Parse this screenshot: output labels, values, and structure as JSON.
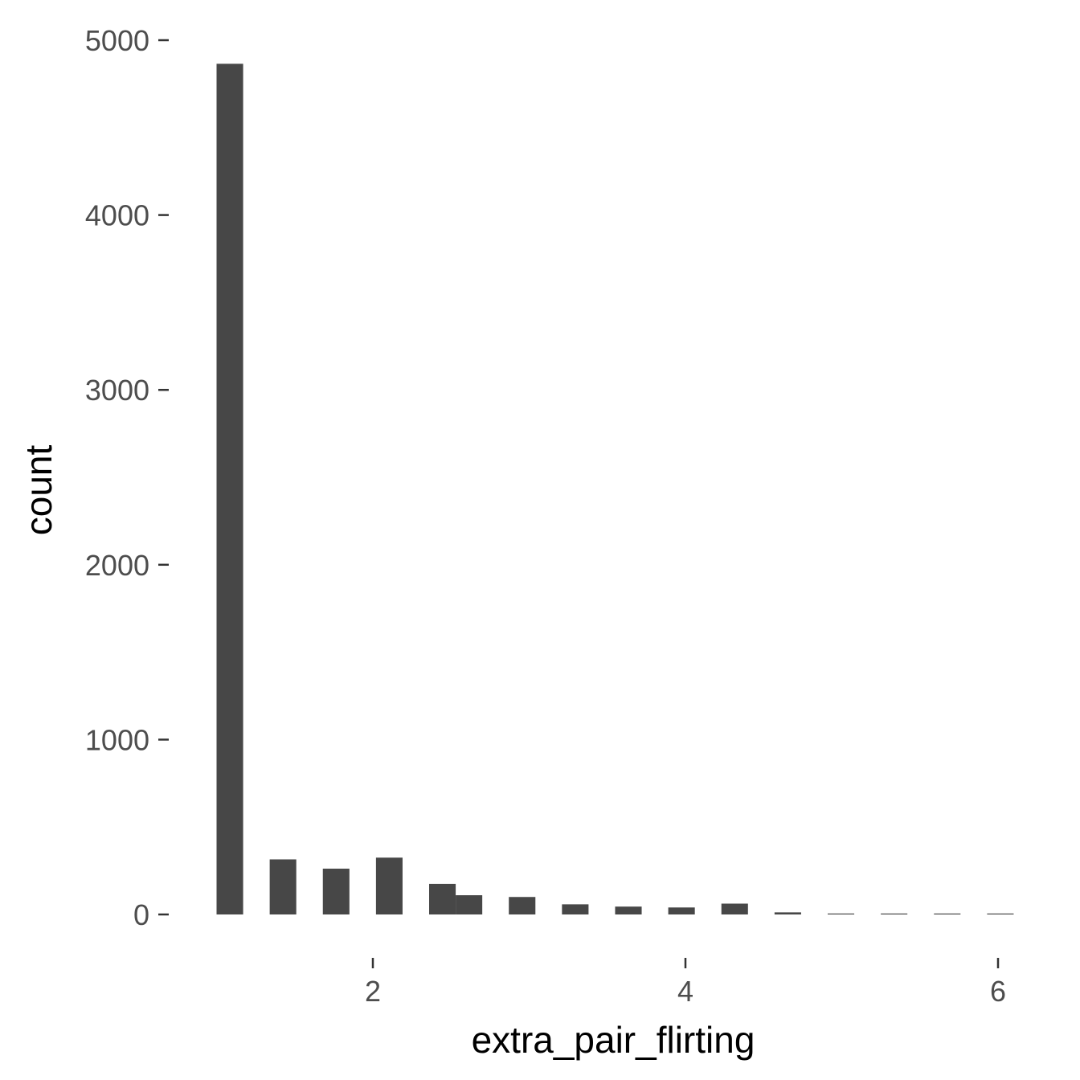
{
  "chart_data": {
    "type": "bar",
    "title": "",
    "xlabel": "extra_pair_flirting",
    "ylabel": "count",
    "xlim": [
      1.0,
      6.1
    ],
    "ylim": [
      0,
      5000
    ],
    "x_ticks": [
      2,
      4,
      6
    ],
    "y_ticks": [
      0,
      1000,
      2000,
      3000,
      4000,
      5000
    ],
    "x_tick_labels": [
      "2",
      "4",
      "6"
    ],
    "y_tick_labels": [
      "0",
      "1000",
      "2000",
      "3000",
      "4000",
      "5000"
    ],
    "grid": false,
    "legend": "none",
    "bar_color": "#474747",
    "bins": [
      {
        "x0": 1.0,
        "x1": 1.17,
        "count": 4865
      },
      {
        "x0": 1.17,
        "x1": 1.34,
        "count": 0
      },
      {
        "x0": 1.34,
        "x1": 1.51,
        "count": 315
      },
      {
        "x0": 1.51,
        "x1": 1.68,
        "count": 0
      },
      {
        "x0": 1.68,
        "x1": 1.85,
        "count": 262
      },
      {
        "x0": 1.85,
        "x1": 2.02,
        "count": 0
      },
      {
        "x0": 2.02,
        "x1": 2.19,
        "count": 325
      },
      {
        "x0": 2.19,
        "x1": 2.36,
        "count": 0
      },
      {
        "x0": 2.36,
        "x1": 2.53,
        "count": 175
      },
      {
        "x0": 2.53,
        "x1": 2.7,
        "count": 110
      },
      {
        "x0": 2.7,
        "x1": 2.87,
        "count": 0
      },
      {
        "x0": 2.87,
        "x1": 3.04,
        "count": 100
      },
      {
        "x0": 3.04,
        "x1": 3.21,
        "count": 0
      },
      {
        "x0": 3.21,
        "x1": 3.38,
        "count": 58
      },
      {
        "x0": 3.38,
        "x1": 3.55,
        "count": 0
      },
      {
        "x0": 3.55,
        "x1": 3.72,
        "count": 45
      },
      {
        "x0": 3.72,
        "x1": 3.89,
        "count": 0
      },
      {
        "x0": 3.89,
        "x1": 4.06,
        "count": 40
      },
      {
        "x0": 4.06,
        "x1": 4.23,
        "count": 0
      },
      {
        "x0": 4.23,
        "x1": 4.4,
        "count": 62
      },
      {
        "x0": 4.4,
        "x1": 4.57,
        "count": 0
      },
      {
        "x0": 4.57,
        "x1": 4.74,
        "count": 12
      },
      {
        "x0": 4.74,
        "x1": 4.91,
        "count": 0
      },
      {
        "x0": 4.91,
        "x1": 5.08,
        "count": 3
      },
      {
        "x0": 5.08,
        "x1": 5.25,
        "count": 0
      },
      {
        "x0": 5.25,
        "x1": 5.42,
        "count": 3
      },
      {
        "x0": 5.42,
        "x1": 5.59,
        "count": 0
      },
      {
        "x0": 5.59,
        "x1": 5.76,
        "count": 3
      },
      {
        "x0": 5.76,
        "x1": 5.93,
        "count": 0
      },
      {
        "x0": 5.93,
        "x1": 6.1,
        "count": 3
      }
    ]
  }
}
